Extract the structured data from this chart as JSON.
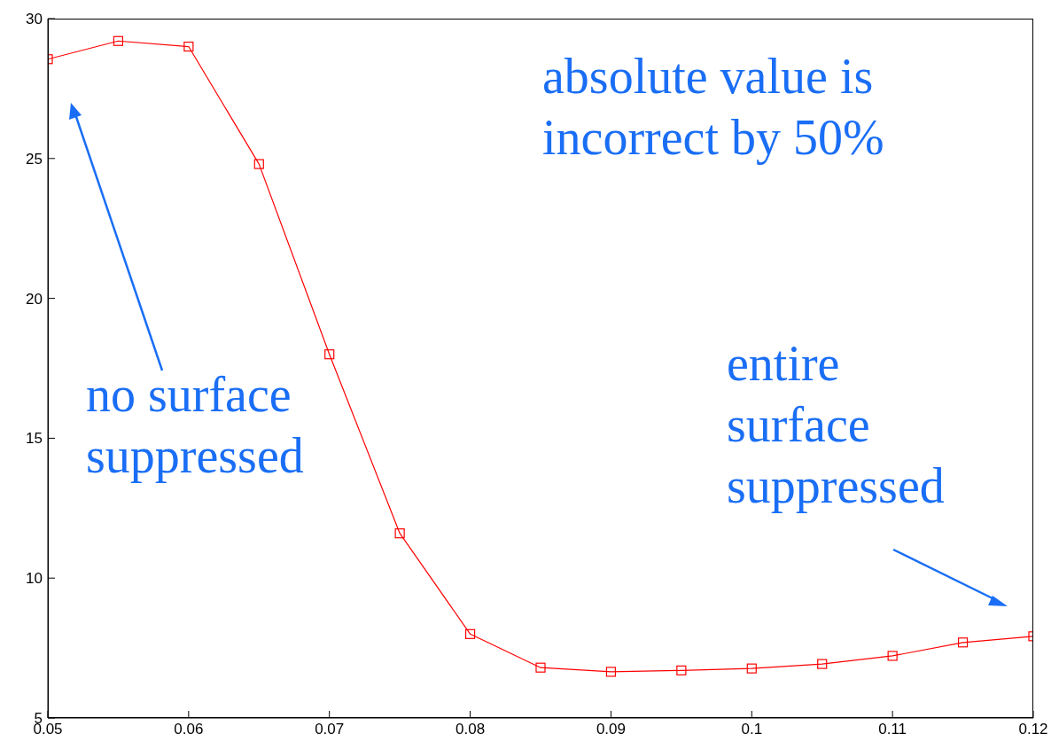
{
  "chart_data": {
    "type": "line",
    "x": [
      0.05,
      0.055,
      0.06,
      0.065,
      0.07,
      0.075,
      0.08,
      0.085,
      0.09,
      0.095,
      0.1,
      0.105,
      0.11,
      0.115,
      0.12
    ],
    "values": [
      28.55,
      29.2,
      29.0,
      24.8,
      18.0,
      11.6,
      8.0,
      6.8,
      6.65,
      6.7,
      6.77,
      6.93,
      7.22,
      7.7,
      7.92
    ],
    "color": "#ff0000",
    "marker": "square",
    "xlim": [
      0.05,
      0.12
    ],
    "xticks": [
      0.05,
      0.06,
      0.07,
      0.08,
      0.09,
      0.1,
      0.11,
      0.12
    ],
    "ylim": [
      5,
      30
    ],
    "yticks": [
      5,
      10,
      15,
      20,
      25,
      30
    ],
    "grid": false,
    "annotations": [
      "absolute value is\nincorrect by 50%",
      "no surface\nsuppressed",
      "entire\nsurface\nsuppressed"
    ]
  }
}
